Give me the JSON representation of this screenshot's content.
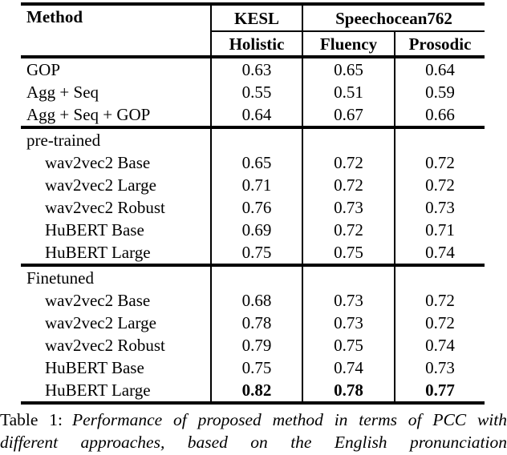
{
  "table": {
    "header": {
      "method_label": "Method",
      "group_kesl": "KESL",
      "group_speechocean": "Speechocean762",
      "sub_holistic": "Holistic",
      "sub_fluency": "Fluency",
      "sub_prosodic": "Prosodic"
    },
    "sections": [
      {
        "label": "",
        "rows": [
          {
            "method": "GOP",
            "indent": false,
            "bold": false,
            "values": [
              "0.63",
              "0.65",
              "0.64"
            ]
          },
          {
            "method": "Agg + Seq",
            "indent": false,
            "bold": false,
            "values": [
              "0.55",
              "0.51",
              "0.59"
            ]
          },
          {
            "method": "Agg + Seq + GOP",
            "indent": false,
            "bold": false,
            "values": [
              "0.64",
              "0.67",
              "0.66"
            ]
          }
        ]
      },
      {
        "label": "pre-trained",
        "rows": [
          {
            "method": "wav2vec2 Base",
            "indent": true,
            "bold": false,
            "values": [
              "0.65",
              "0.72",
              "0.72"
            ]
          },
          {
            "method": "wav2vec2 Large",
            "indent": true,
            "bold": false,
            "values": [
              "0.71",
              "0.72",
              "0.72"
            ]
          },
          {
            "method": "wav2vec2 Robust",
            "indent": true,
            "bold": false,
            "values": [
              "0.76",
              "0.73",
              "0.73"
            ]
          },
          {
            "method": "HuBERT Base",
            "indent": true,
            "bold": false,
            "values": [
              "0.69",
              "0.72",
              "0.71"
            ]
          },
          {
            "method": "HuBERT Large",
            "indent": true,
            "bold": false,
            "values": [
              "0.75",
              "0.75",
              "0.74"
            ]
          }
        ]
      },
      {
        "label": "Finetuned",
        "rows": [
          {
            "method": "wav2vec2 Base",
            "indent": true,
            "bold": false,
            "values": [
              "0.68",
              "0.73",
              "0.72"
            ]
          },
          {
            "method": "wav2vec2 Large",
            "indent": true,
            "bold": false,
            "values": [
              "0.78",
              "0.73",
              "0.72"
            ]
          },
          {
            "method": "wav2vec2 Robust",
            "indent": true,
            "bold": false,
            "values": [
              "0.79",
              "0.75",
              "0.74"
            ]
          },
          {
            "method": "HuBERT Base",
            "indent": true,
            "bold": false,
            "values": [
              "0.75",
              "0.74",
              "0.73"
            ]
          },
          {
            "method": "HuBERT Large",
            "indent": true,
            "bold": true,
            "values": [
              "0.82",
              "0.78",
              "0.77"
            ]
          }
        ]
      }
    ]
  },
  "caption": {
    "label": "Table 1:",
    "text": "Performance of proposed method in terms of PCC with different approaches, based on the English pronunciation"
  },
  "colors": {
    "text": "#000000",
    "background": "#ffffff",
    "rule": "#000000"
  }
}
